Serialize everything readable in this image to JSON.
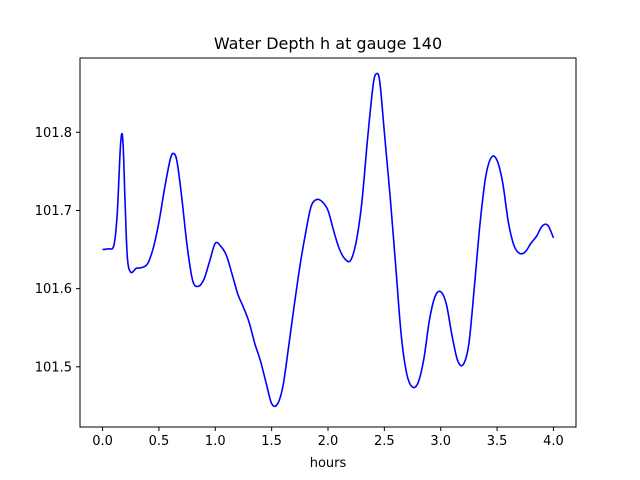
{
  "chart_data": {
    "type": "line",
    "title": "Water Depth h at gauge 140",
    "xlabel": "hours",
    "ylabel": "",
    "xlim": [
      -0.2,
      4.2
    ],
    "ylim": [
      101.423,
      101.895
    ],
    "xticks": [
      0.0,
      0.5,
      1.0,
      1.5,
      2.0,
      2.5,
      3.0,
      3.5,
      4.0
    ],
    "xtick_labels": [
      "0.0",
      "0.5",
      "1.0",
      "1.5",
      "2.0",
      "2.5",
      "3.0",
      "3.5",
      "4.0"
    ],
    "yticks": [
      101.5,
      101.6,
      101.7,
      101.8
    ],
    "ytick_labels": [
      "101.5",
      "101.6",
      "101.7",
      "101.8"
    ],
    "grid": false,
    "series": [
      {
        "color": "#0000ff",
        "x": [
          0.0,
          0.05,
          0.1,
          0.13,
          0.16,
          0.18,
          0.2,
          0.22,
          0.25,
          0.3,
          0.35,
          0.4,
          0.45,
          0.5,
          0.55,
          0.6,
          0.63,
          0.66,
          0.7,
          0.75,
          0.8,
          0.85,
          0.9,
          0.95,
          1.0,
          1.05,
          1.1,
          1.15,
          1.2,
          1.25,
          1.3,
          1.35,
          1.4,
          1.45,
          1.5,
          1.55,
          1.6,
          1.65,
          1.7,
          1.75,
          1.8,
          1.85,
          1.9,
          1.95,
          2.0,
          2.05,
          2.1,
          2.15,
          2.2,
          2.25,
          2.3,
          2.35,
          2.4,
          2.43,
          2.46,
          2.5,
          2.55,
          2.6,
          2.65,
          2.7,
          2.75,
          2.8,
          2.85,
          2.9,
          2.95,
          3.0,
          3.05,
          3.1,
          3.15,
          3.2,
          3.25,
          3.3,
          3.35,
          3.4,
          3.45,
          3.5,
          3.55,
          3.6,
          3.65,
          3.7,
          3.75,
          3.8,
          3.85,
          3.9,
          3.95,
          4.0
        ],
        "y": [
          101.65,
          101.651,
          101.655,
          101.695,
          101.785,
          101.79,
          101.71,
          101.64,
          101.621,
          101.626,
          101.627,
          101.632,
          101.652,
          101.685,
          101.728,
          101.765,
          101.773,
          101.763,
          101.72,
          101.655,
          101.61,
          101.603,
          101.612,
          101.635,
          101.658,
          101.654,
          101.642,
          101.618,
          101.593,
          101.576,
          101.557,
          101.53,
          101.508,
          101.48,
          101.453,
          101.452,
          101.475,
          101.525,
          101.578,
          101.628,
          101.67,
          101.705,
          101.714,
          101.711,
          101.7,
          101.674,
          101.651,
          101.638,
          101.636,
          101.66,
          101.71,
          101.79,
          101.86,
          101.875,
          101.864,
          101.8,
          101.72,
          101.63,
          101.54,
          101.49,
          101.474,
          101.48,
          101.51,
          101.56,
          101.59,
          101.596,
          101.58,
          101.54,
          101.508,
          101.503,
          101.53,
          101.605,
          101.685,
          101.744,
          101.768,
          101.764,
          101.735,
          101.685,
          101.655,
          101.645,
          101.647,
          101.658,
          101.667,
          101.68,
          101.681,
          101.665
        ]
      }
    ]
  }
}
